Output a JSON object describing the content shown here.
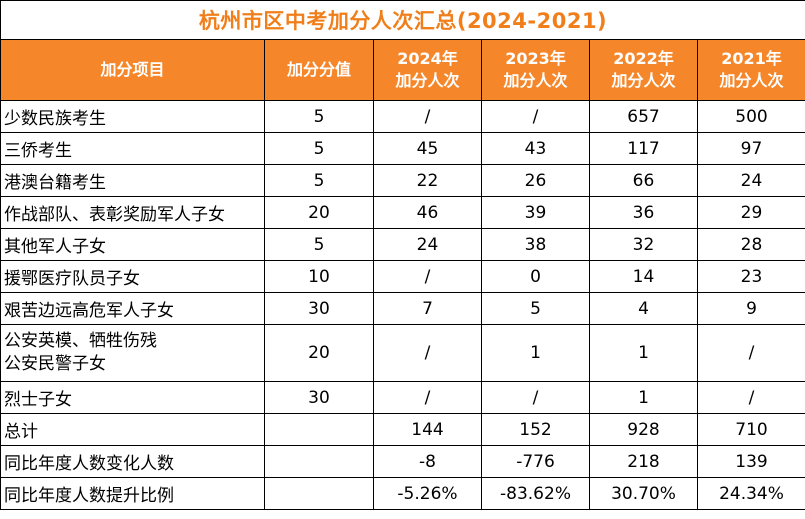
{
  "title": "杭州市区中考加分人次汇总(2024-2021)",
  "header": {
    "item": "加分项目",
    "points": "加分分值",
    "years": [
      {
        "year": "2024年",
        "label": "加分人次"
      },
      {
        "year": "2023年",
        "label": "加分人次"
      },
      {
        "year": "2022年",
        "label": "加分人次"
      },
      {
        "year": "2021年",
        "label": "加分人次"
      }
    ]
  },
  "rows": [
    {
      "name": [
        "少数民族考生"
      ],
      "points": "5",
      "values": [
        "/",
        "/",
        "657",
        "500"
      ]
    },
    {
      "name": [
        "三侨考生"
      ],
      "points": "5",
      "values": [
        "45",
        "43",
        "117",
        "97"
      ]
    },
    {
      "name": [
        "港澳台籍考生"
      ],
      "points": "5",
      "values": [
        "22",
        "26",
        "66",
        "24"
      ]
    },
    {
      "name": [
        "作战部队、表彰奖励军人子女"
      ],
      "points": "20",
      "values": [
        "46",
        "39",
        "36",
        "29"
      ]
    },
    {
      "name": [
        "其他军人子女"
      ],
      "points": "5",
      "values": [
        "24",
        "38",
        "32",
        "28"
      ]
    },
    {
      "name": [
        "援鄂医疗队员子女"
      ],
      "points": "10",
      "values": [
        "/",
        "0",
        "14",
        "23"
      ]
    },
    {
      "name": [
        "艰苦边远高危军人子女"
      ],
      "points": "30",
      "values": [
        "7",
        "5",
        "4",
        "9"
      ]
    },
    {
      "name": [
        "公安英模、牺牲伤残",
        "公安民警子女"
      ],
      "points": "20",
      "values": [
        "/",
        "1",
        "1",
        "/"
      ]
    },
    {
      "name": [
        "烈士子女"
      ],
      "points": "30",
      "values": [
        "/",
        "/",
        "1",
        "/"
      ]
    },
    {
      "name": [
        "总计"
      ],
      "points": "",
      "values": [
        "144",
        "152",
        "928",
        "710"
      ]
    },
    {
      "name": [
        "同比年度人数变化人数"
      ],
      "points": "",
      "values": [
        "-8",
        "-776",
        "218",
        "139"
      ]
    },
    {
      "name": [
        "同比年度人数提升比例"
      ],
      "points": "",
      "values": [
        "-5.26%",
        "-83.62%",
        "30.70%",
        "24.34%"
      ]
    }
  ],
  "colors": {
    "title": "#f07f1b",
    "header_bg": "#f5872a",
    "header_text": "#ffffff"
  }
}
